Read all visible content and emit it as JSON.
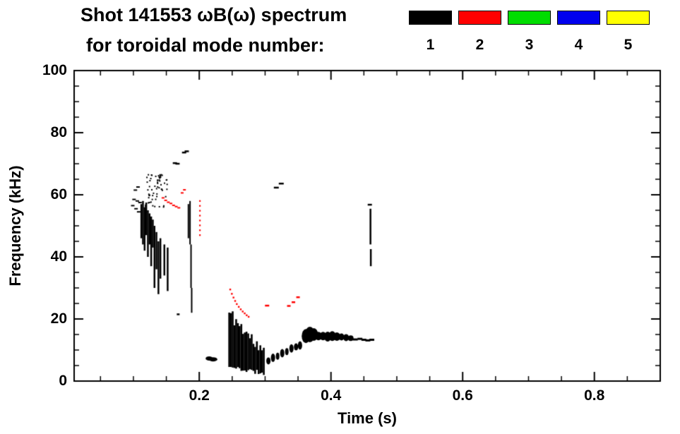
{
  "header": {
    "title_line1": "Shot 141553 ωB(ω) spectrum",
    "title_line2": "for toroidal mode number:"
  },
  "chart_data": {
    "type": "scatter",
    "title": "Shot 141553 ωB(ω) spectrum",
    "subtitle": "for toroidal mode number:",
    "xlabel": "Time (s)",
    "ylabel": "Frequency (kHz)",
    "xlim": [
      0.01,
      0.9
    ],
    "ylim": [
      0,
      100
    ],
    "grid": "off",
    "legend_position": "top-right",
    "xticks": {
      "values": [
        0.2,
        0.4,
        0.6,
        0.8
      ],
      "labels": [
        "0.2",
        "0.4",
        "0.6",
        "0.8"
      ],
      "minor_step": 0.05
    },
    "yticks": {
      "values": [
        0,
        20,
        40,
        60,
        80,
        100
      ],
      "labels": [
        "0",
        "20",
        "40",
        "60",
        "80",
        "100"
      ],
      "minor_step": 5
    },
    "legend": {
      "entries": [
        {
          "label": "1",
          "color": "#000000"
        },
        {
          "label": "2",
          "color": "#ff0000"
        },
        {
          "label": "3",
          "color": "#00dd00"
        },
        {
          "label": "4",
          "color": "#0000ee"
        },
        {
          "label": "5",
          "color": "#ffff00"
        }
      ]
    },
    "series": [
      {
        "name": "n=1",
        "mode": 1,
        "color": "#000000",
        "features": [
          {
            "type": "dashes",
            "w": 5,
            "h": 2,
            "points": [
              [
                0.099,
                56.5
              ],
              [
                0.101,
                58.5
              ],
              [
                0.103,
                61.5
              ],
              [
                0.104,
                55.5
              ],
              [
                0.106,
                58.0
              ],
              [
                0.107,
                62.5
              ],
              [
                0.108,
                54.5
              ],
              [
                0.11,
                57.5
              ]
            ]
          },
          {
            "type": "vlines",
            "w": 2.5,
            "lines": [
              [
                0.112,
                46,
                57
              ],
              [
                0.1145,
                44,
                58
              ],
              [
                0.117,
                42,
                56
              ],
              [
                0.1195,
                47,
                57.5
              ],
              [
                0.122,
                40,
                55
              ],
              [
                0.1245,
                44,
                54
              ],
              [
                0.127,
                37,
                53
              ],
              [
                0.1295,
                43,
                52
              ],
              [
                0.132,
                30,
                50
              ],
              [
                0.135,
                36,
                48
              ],
              [
                0.138,
                28,
                45
              ],
              [
                0.141,
                33,
                46
              ],
              [
                0.147,
                34,
                44
              ],
              [
                0.152,
                29,
                43
              ]
            ]
          },
          {
            "type": "cluster",
            "t0": 0.118,
            "t1": 0.152,
            "f0": 56,
            "f1": 66.5,
            "n": 60,
            "size": 2,
            "seed": 7
          },
          {
            "type": "dashes",
            "w": 6,
            "h": 2.5,
            "points": [
              [
                0.163,
                70.2
              ],
              [
                0.167,
                70.0
              ],
              [
                0.177,
                73.6
              ],
              [
                0.181,
                74.0
              ]
            ]
          },
          {
            "type": "vlines",
            "w": 2,
            "lines": [
              [
                0.1835,
                46,
                57
              ],
              [
                0.186,
                44,
                58
              ],
              [
                0.1875,
                30,
                44
              ],
              [
                0.1885,
                22,
                30
              ]
            ]
          },
          {
            "type": "dashes",
            "w": 4,
            "h": 2.5,
            "points": [
              [
                0.168,
                21.5
              ]
            ]
          },
          {
            "type": "blobs",
            "blobs": [
              [
                0.215,
                7.3,
                5,
                3
              ],
              [
                0.221,
                7.0,
                6,
                3
              ]
            ]
          },
          {
            "type": "chirp_fan",
            "t0": 0.2455,
            "t1": 0.298,
            "ftop0": 22,
            "ftop1": 9,
            "fbot0": 4.5,
            "fbot1": 2.5,
            "n": 21,
            "w": 2.6,
            "jitter": 2.5,
            "seed": 11
          },
          {
            "type": "blobs",
            "blobs": [
              [
                0.305,
                6.5,
                3,
                5
              ],
              [
                0.312,
                7.5,
                3,
                6
              ],
              [
                0.319,
                8,
                2.5,
                5
              ],
              [
                0.326,
                9,
                3,
                6
              ],
              [
                0.333,
                9.5,
                2.5,
                5
              ],
              [
                0.34,
                10.5,
                3,
                6
              ],
              [
                0.347,
                11,
                3,
                5
              ],
              [
                0.353,
                11.5,
                3,
                6
              ]
            ]
          },
          {
            "type": "blobs",
            "blobs": [
              [
                0.362,
                14.5,
                6,
                10
              ],
              [
                0.368,
                15,
                7,
                11
              ],
              [
                0.374,
                15,
                6,
                9
              ]
            ]
          },
          {
            "type": "blobs",
            "blobs": [
              [
                0.381,
                14.5,
                5,
                6
              ],
              [
                0.388,
                14.5,
                5,
                6
              ],
              [
                0.395,
                14.3,
                5,
                7
              ],
              [
                0.402,
                14.5,
                5,
                7
              ],
              [
                0.409,
                14.3,
                5,
                6
              ],
              [
                0.416,
                14.2,
                4,
                5
              ],
              [
                0.423,
                14.0,
                4,
                5
              ],
              [
                0.43,
                13.8,
                4,
                4
              ]
            ]
          },
          {
            "type": "dashes",
            "w": 7,
            "h": 3,
            "points": [
              [
                0.437,
                13.4
              ],
              [
                0.444,
                13.6
              ],
              [
                0.45,
                13.3
              ],
              [
                0.456,
                13.1
              ],
              [
                0.462,
                13.3
              ]
            ]
          },
          {
            "type": "vlines",
            "w": 2.5,
            "lines": [
              [
                0.46,
                44,
                55.5
              ],
              [
                0.4605,
                37,
                42.5
              ]
            ]
          },
          {
            "type": "dashes",
            "w": 6,
            "h": 2.5,
            "points": [
              [
                0.459,
                56.8
              ]
            ]
          },
          {
            "type": "dashes",
            "w": 7,
            "h": 2.5,
            "points": [
              [
                0.317,
                62.3
              ],
              [
                0.3245,
                63.6
              ]
            ]
          }
        ]
      },
      {
        "name": "n=2",
        "mode": 2,
        "color": "#ff0000",
        "features": [
          {
            "type": "dashes",
            "w": 4,
            "h": 2,
            "points": [
              [
                0.145,
                59.0
              ],
              [
                0.149,
                58.2
              ],
              [
                0.153,
                57.6
              ],
              [
                0.157,
                57.2
              ],
              [
                0.161,
                56.6
              ],
              [
                0.165,
                56.2
              ],
              [
                0.169,
                55.8
              ],
              [
                0.174,
                60.6
              ],
              [
                0.1775,
                61.6
              ]
            ]
          },
          {
            "type": "vdots",
            "t": 0.201,
            "f0": 47,
            "f1": 58,
            "n": 8,
            "size": 2.2
          },
          {
            "type": "dots",
            "size": 2.4,
            "points": [
              [
                0.247,
                29.5
              ],
              [
                0.2495,
                28.1
              ],
              [
                0.252,
                26.9
              ],
              [
                0.2545,
                25.8
              ],
              [
                0.257,
                24.8
              ],
              [
                0.26,
                23.9
              ],
              [
                0.263,
                23.1
              ],
              [
                0.266,
                22.4
              ],
              [
                0.269,
                21.8
              ],
              [
                0.272,
                21.2
              ],
              [
                0.275,
                20.7
              ]
            ]
          },
          {
            "type": "dashes",
            "w": 6,
            "h": 2.5,
            "points": [
              [
                0.303,
                24.3
              ]
            ]
          },
          {
            "type": "dashes",
            "w": 5,
            "h": 2.5,
            "points": [
              [
                0.336,
                24.2
              ],
              [
                0.343,
                25.4
              ],
              [
                0.35,
                27.0
              ]
            ]
          }
        ]
      },
      {
        "name": "n=3",
        "mode": 3,
        "color": "#00dd00",
        "features": []
      },
      {
        "name": "n=4",
        "mode": 4,
        "color": "#0000ee",
        "features": []
      },
      {
        "name": "n=5",
        "mode": 5,
        "color": "#ffff00",
        "features": []
      }
    ]
  }
}
